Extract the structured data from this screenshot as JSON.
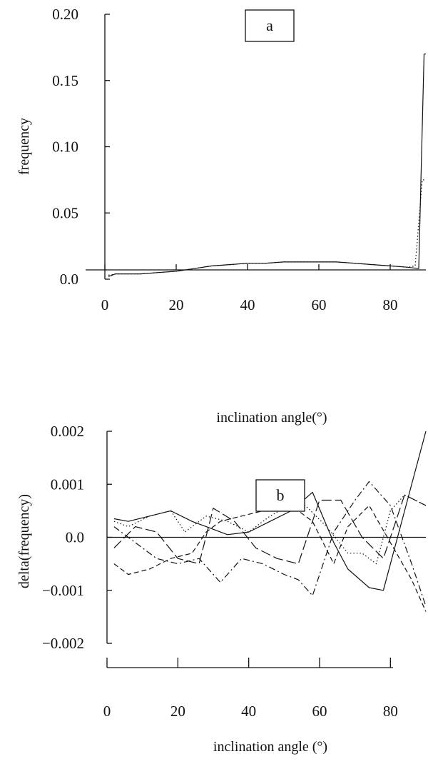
{
  "chart_data": [
    {
      "type": "line",
      "panel_label": "a",
      "xlabel": "inclination angle(°)",
      "ylabel": "frequency",
      "xlim": [
        0,
        90
      ],
      "ylim": [
        0,
        0.2
      ],
      "x_ticks": [
        0,
        20,
        40,
        60,
        80
      ],
      "y_ticks": [
        0.0,
        0.05,
        0.1,
        0.15,
        0.2
      ],
      "y_tick_labels": [
        "0.0",
        "0.05",
        "0.10",
        "0.15",
        "0.20"
      ],
      "grid": false,
      "series": [
        {
          "style": "solid",
          "x": [
            1,
            3,
            6,
            10,
            15,
            20,
            25,
            30,
            35,
            40,
            45,
            50,
            55,
            60,
            65,
            70,
            75,
            80,
            85,
            88,
            89.5,
            90
          ],
          "values": [
            0.002,
            0.004,
            0.004,
            0.004,
            0.005,
            0.006,
            0.008,
            0.01,
            0.011,
            0.012,
            0.012,
            0.013,
            0.013,
            0.013,
            0.013,
            0.012,
            0.011,
            0.01,
            0.009,
            0.008,
            0.17,
            0.17
          ]
        },
        {
          "style": "dotted",
          "x": [
            1,
            3,
            6,
            10,
            15,
            20,
            25,
            30,
            35,
            40,
            45,
            50,
            55,
            60,
            65,
            70,
            75,
            80,
            85,
            87,
            89,
            90
          ],
          "values": [
            0.003,
            0.004,
            0.004,
            0.004,
            0.005,
            0.006,
            0.008,
            0.01,
            0.011,
            0.012,
            0.012,
            0.013,
            0.013,
            0.013,
            0.013,
            0.012,
            0.011,
            0.01,
            0.009,
            0.01,
            0.075,
            0.075
          ]
        }
      ]
    },
    {
      "type": "line",
      "panel_label": "b",
      "xlabel": "inclination angle (°)",
      "ylabel": "delta(frequency)",
      "xlim": [
        0,
        90
      ],
      "ylim": [
        -0.002,
        0.002
      ],
      "x_ticks": [
        0,
        20,
        40,
        60,
        80
      ],
      "y_ticks": [
        -0.002,
        -0.001,
        0.0,
        0.001,
        0.002
      ],
      "y_tick_labels": [
        "−0.002",
        "−0.001",
        "0.0",
        "0.001",
        "0.002"
      ],
      "grid": false,
      "zero_line": true,
      "series": [
        {
          "style": "solid",
          "x": [
            2,
            6,
            12,
            18,
            24,
            28,
            34,
            40,
            46,
            52,
            58,
            64,
            68,
            74,
            78,
            84,
            90
          ],
          "values": [
            0.00035,
            0.0003,
            0.0004,
            0.0005,
            0.0003,
            0.0002,
            5e-05,
            0.0001,
            0.0003,
            0.0005,
            0.00085,
            -0.0001,
            -0.0006,
            -0.00095,
            -0.001,
            0.0005,
            0.002
          ]
        },
        {
          "style": "dashed",
          "x": [
            2,
            6,
            12,
            18,
            24,
            28,
            32,
            38,
            44,
            50,
            54,
            58,
            64,
            68,
            74,
            80,
            86,
            90
          ],
          "values": [
            -0.0005,
            -0.0007,
            -0.0006,
            -0.0004,
            -0.0003,
            0.0001,
            0.0003,
            0.0004,
            0.0005,
            0.0006,
            0.0005,
            0.0003,
            -0.0005,
            0.0002,
            0.0006,
            -0.0001,
            -0.0008,
            -0.0014
          ]
        },
        {
          "style": "dash-dot",
          "x": [
            2,
            8,
            14,
            20,
            26,
            32,
            38,
            44,
            50,
            54,
            58,
            64,
            70,
            74,
            80,
            86,
            90
          ],
          "values": [
            0.0002,
            -0.0001,
            -0.0004,
            -0.0005,
            -0.0004,
            -0.00085,
            -0.0004,
            -0.0005,
            -0.0007,
            -0.0008,
            -0.0011,
            0.0001,
            0.0007,
            0.00105,
            0.0006,
            -0.0005,
            -0.0013
          ]
        },
        {
          "style": "dotted",
          "x": [
            2,
            6,
            12,
            18,
            22,
            28,
            34,
            40,
            46,
            50,
            56,
            62,
            68,
            72,
            76,
            80,
            84,
            90
          ],
          "values": [
            0.0003,
            0.0002,
            0.0004,
            0.0005,
            0.0001,
            0.0004,
            0.0003,
            0.0001,
            0.0004,
            0.00055,
            0.0006,
            0.0002,
            -0.0003,
            -0.0003,
            -0.0005,
            0.0005,
            0.0008,
            0.0006
          ]
        },
        {
          "style": "long-dash",
          "x": [
            2,
            8,
            14,
            20,
            26,
            30,
            36,
            42,
            48,
            54,
            60,
            66,
            72,
            78,
            84,
            90
          ],
          "values": [
            -0.0002,
            0.0002,
            0.0001,
            -0.0004,
            -0.0005,
            0.00055,
            0.0003,
            -0.0002,
            -0.0004,
            -0.0005,
            0.0007,
            0.0007,
            0.0,
            -0.0004,
            0.0008,
            0.0006
          ]
        }
      ]
    }
  ]
}
